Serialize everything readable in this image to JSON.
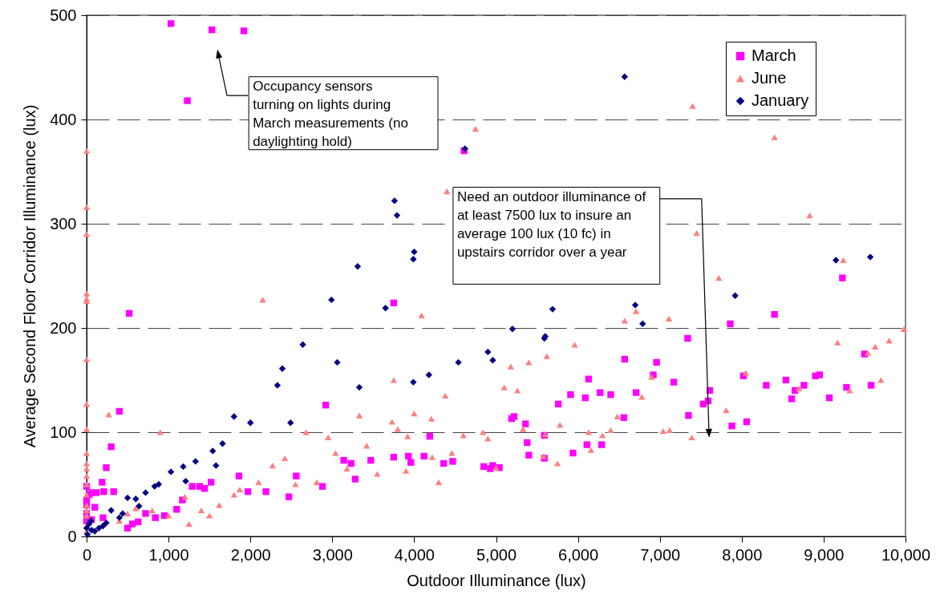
{
  "chart_data": {
    "type": "scatter",
    "xlabel": "Outdoor Illuminance (lux)",
    "ylabel": "Average Second Floor Corridor Illuminance (lux)",
    "xlim": [
      0,
      10000
    ],
    "xticks": [
      {
        "value": 0,
        "label": "0"
      },
      {
        "value": 1000,
        "label": "1,000"
      },
      {
        "value": 2000,
        "label": "2,000"
      },
      {
        "value": 3000,
        "label": "3,000"
      },
      {
        "value": 4000,
        "label": "4,000"
      },
      {
        "value": 5000,
        "label": "5,000"
      },
      {
        "value": 6000,
        "label": "6,000"
      },
      {
        "value": 7000,
        "label": "7,000"
      },
      {
        "value": 8000,
        "label": "8,000"
      },
      {
        "value": 9000,
        "label": "9,000"
      },
      {
        "value": 10000,
        "label": "10,000"
      }
    ],
    "ylim": [
      0,
      500
    ],
    "yticks": [
      0,
      100,
      200,
      300,
      400,
      500
    ],
    "grid": "y",
    "legend": "top right",
    "annotations": [
      {
        "text": "Occupancy sensors turning on lights during March measurements (no daylighting hold)",
        "x": 1610,
        "y": 462
      },
      {
        "text": "Need an outdoor illuminance of at least 7500 lux to insure an average 100 lux (10 fc) in upstairs corridor over a year",
        "x": 7600,
        "y": 100
      }
    ],
    "series": [
      {
        "name": "March",
        "color": "#ff00ff",
        "marker": "square",
        "x": [
          1030,
          1530,
          1920,
          1230,
          4610,
          520,
          3750,
          400,
          300,
          240,
          190,
          2920,
          8400,
          7860,
          9230,
          7340,
          8020,
          8060,
          7880,
          7610,
          7590,
          7530,
          7350,
          7170,
          6960,
          6920,
          6710,
          6570,
          6560,
          6400,
          6270,
          6130,
          6090,
          6110,
          6290,
          5910,
          5760,
          5940,
          5220,
          5190,
          5360,
          5380,
          5400,
          5590,
          5590,
          4850,
          4960,
          5040,
          4930,
          4470,
          4360,
          4190,
          4120,
          3930,
          3960,
          3750,
          3470,
          3230,
          3280,
          3140,
          2880,
          2560,
          2470,
          2190,
          1970,
          1860,
          1520,
          1380,
          1440,
          1290,
          1170,
          1100,
          950,
          840,
          720,
          630,
          560,
          500,
          330,
          210,
          120,
          60,
          30,
          0,
          0,
          0,
          0,
          0,
          100,
          60,
          200,
          9500,
          9580,
          9280,
          8950,
          8900,
          8760,
          8650,
          8610,
          8300,
          8540,
          9070
        ],
        "values": [
          492,
          486,
          485,
          418,
          370,
          214,
          224,
          120,
          86,
          66,
          52,
          126,
          213,
          204,
          248,
          190,
          154,
          110,
          106,
          140,
          130,
          127,
          116,
          148,
          167,
          155,
          138,
          170,
          114,
          136,
          138,
          151,
          133,
          88,
          88,
          136,
          127,
          80,
          115,
          113,
          108,
          90,
          78,
          97,
          75,
          67,
          68,
          66,
          65,
          72,
          70,
          96,
          77,
          77,
          71,
          76,
          73,
          70,
          55,
          73,
          48,
          58,
          38,
          43,
          43,
          58,
          52,
          48,
          46,
          48,
          35,
          26,
          20,
          18,
          22,
          14,
          12,
          8,
          43,
          43,
          42,
          42,
          40,
          48,
          35,
          30,
          22,
          15,
          28,
          16,
          18,
          175,
          145,
          143,
          155,
          154,
          145,
          140,
          132,
          145,
          150,
          133
        ]
      },
      {
        "name": "June",
        "color": "#ff8080",
        "marker": "triangle",
        "x": [
          0,
          0,
          0,
          0,
          0,
          0,
          0,
          0,
          0,
          0,
          0,
          0,
          0,
          0,
          0,
          0,
          0,
          0,
          0,
          0,
          270,
          900,
          2150,
          4090,
          4750,
          7400,
          8400,
          8830,
          9240,
          7450,
          7720,
          7110,
          6570,
          4400,
          3750,
          4000,
          4210,
          4380,
          3800,
          3920,
          5960,
          5180,
          5400,
          5620,
          6900,
          6780,
          7040,
          6480,
          6400,
          6710,
          7120,
          7390,
          8050,
          7810,
          8700,
          9170,
          9320,
          9540,
          9700,
          9800,
          9980,
          9630,
          2950,
          2680,
          2810,
          2420,
          2270,
          1870,
          1800,
          1620,
          2100,
          3420,
          3550,
          3180,
          3040,
          3330,
          4220,
          4460,
          4600,
          5000,
          5100,
          5260,
          5330,
          5600,
          5780,
          6130,
          5580,
          4840,
          4900,
          5750,
          6300,
          6160,
          600,
          500,
          400,
          800,
          1000,
          1200,
          1400,
          1500,
          1250,
          3900,
          4300,
          2550,
          3730
        ],
        "values": [
          370,
          316,
          290,
          233,
          228,
          226,
          170,
          127,
          103,
          80,
          70,
          65,
          58,
          50,
          40,
          30,
          25,
          20,
          10,
          5,
          117,
          100,
          227,
          212,
          391,
          413,
          383,
          308,
          265,
          291,
          248,
          209,
          207,
          331,
          150,
          118,
          113,
          135,
          103,
          96,
          184,
          163,
          167,
          173,
          153,
          134,
          101,
          115,
          102,
          216,
          102,
          95,
          157,
          121,
          142,
          186,
          140,
          176,
          150,
          188,
          199,
          182,
          95,
          100,
          52,
          75,
          68,
          45,
          40,
          30,
          52,
          87,
          60,
          65,
          80,
          116,
          76,
          80,
          97,
          66,
          143,
          140,
          103,
          98,
          107,
          100,
          77,
          100,
          94,
          70,
          97,
          83,
          27,
          22,
          15,
          25,
          20,
          38,
          25,
          20,
          12,
          63,
          52,
          50,
          110
        ]
      },
      {
        "name": "January",
        "color": "#000080",
        "marker": "diamond",
        "x": [
          4620,
          6570,
          3760,
          3790,
          4000,
          3990,
          3310,
          2990,
          3650,
          5690,
          6700,
          6790,
          7920,
          9150,
          9570,
          5200,
          5600,
          5590,
          4900,
          4960,
          4540,
          4180,
          3990,
          3330,
          3060,
          2640,
          2390,
          2330,
          2490,
          2000,
          1800,
          1660,
          1540,
          1580,
          1330,
          1180,
          1210,
          1030,
          880,
          830,
          720,
          640,
          600,
          500,
          400,
          440,
          300,
          240,
          200,
          150,
          100,
          50,
          0,
          30,
          10,
          60
        ],
        "values": [
          372,
          441,
          322,
          308,
          273,
          266,
          259,
          227,
          219,
          218,
          222,
          204,
          231,
          265,
          268,
          199,
          192,
          190,
          177,
          169,
          167,
          155,
          148,
          143,
          167,
          184,
          161,
          145,
          109,
          109,
          115,
          89,
          82,
          68,
          72,
          67,
          53,
          62,
          50,
          48,
          42,
          29,
          36,
          37,
          18,
          22,
          25,
          13,
          10,
          8,
          5,
          15,
          8,
          12,
          2,
          6
        ]
      }
    ]
  }
}
